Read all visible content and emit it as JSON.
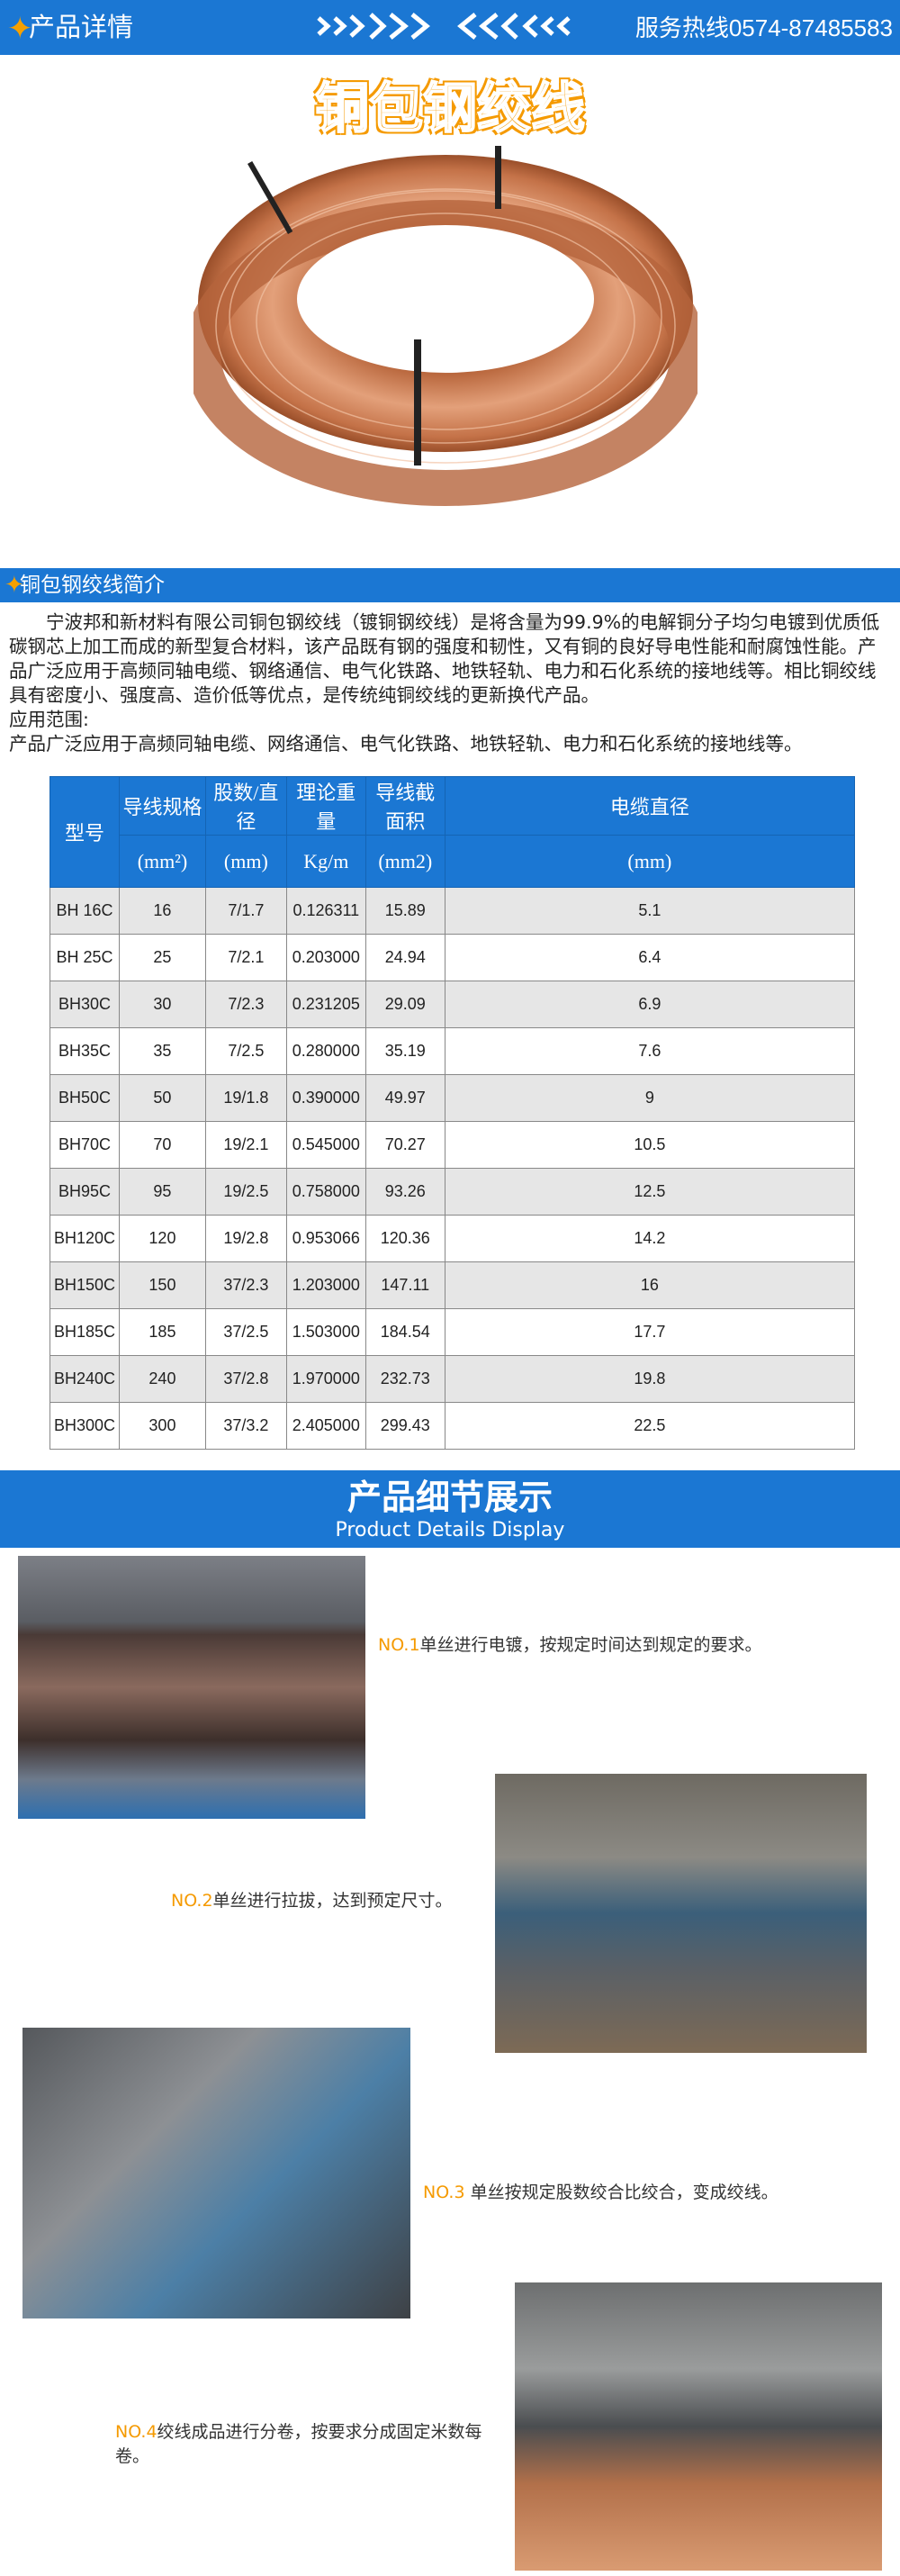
{
  "header": {
    "title": "产品详情",
    "hotline": "服务热线0574-87485583",
    "star_icon": "four-point-star",
    "accent": "#1b77d3",
    "highlight": "#f59a00"
  },
  "product_title": "铜包钢绞线",
  "intro_section": {
    "title": "铜包钢绞线简介",
    "paragraph": "宁波邦和新材料有限公司铜包钢绞线（镀铜钢绞线）是将含量为99.9%的电解铜分子均匀电镀到优质低碳钢芯上加工而成的新型复合材料，该产品既有钢的强度和韧性，又有铜的良好导电性能和耐腐蚀性能。产品广泛应用于高频同轴电缆、钢络通信、电气化铁路、地铁轻轨、电力和石化系统的接地线等。相比铜绞线具有密度小、强度高、造价低等优点，是传统纯铜绞线的更新换代产品。",
    "scope_label": "应用范围:",
    "scope_text": "产品广泛应用于高频同轴电缆、网络通信、电气化铁路、地铁轻轨、电力和石化系统的接地线等。"
  },
  "table": {
    "headers": [
      "型号",
      "导线规格",
      "股数/直径",
      "理论重量",
      "导线截面积",
      "电缆直径"
    ],
    "units": [
      "(mm²)",
      "(mm)",
      "Kg/m",
      "(mm2)",
      "(mm)"
    ],
    "rows": [
      [
        "BH 16C",
        "16",
        "7/1.7",
        "0.126311",
        "15.89",
        "5.1"
      ],
      [
        "BH 25C",
        "25",
        "7/2.1",
        "0.203000",
        "24.94",
        "6.4"
      ],
      [
        "BH30C",
        "30",
        "7/2.3",
        "0.231205",
        "29.09",
        "6.9"
      ],
      [
        "BH35C",
        "35",
        "7/2.5",
        "0.280000",
        "35.19",
        "7.6"
      ],
      [
        "BH50C",
        "50",
        "19/1.8",
        "0.390000",
        "49.97",
        "9"
      ],
      [
        "BH70C",
        "70",
        "19/2.1",
        "0.545000",
        "70.27",
        "10.5"
      ],
      [
        "BH95C",
        "95",
        "19/2.5",
        "0.758000",
        "93.26",
        "12.5"
      ],
      [
        "BH120C",
        "120",
        "19/2.8",
        "0.953066",
        "120.36",
        "14.2"
      ],
      [
        "BH150C",
        "150",
        "37/2.3",
        "1.203000",
        "147.11",
        "16"
      ],
      [
        "BH185C",
        "185",
        "37/2.5",
        "1.503000",
        "184.54",
        "17.7"
      ],
      [
        "BH240C",
        "240",
        "37/2.8",
        "1.970000",
        "232.73",
        "19.8"
      ],
      [
        "BH300C",
        "300",
        "37/3.2",
        "2.405000",
        "299.43",
        "22.5"
      ]
    ]
  },
  "details": {
    "title": "产品细节展示",
    "subtitle": "Product Details Display",
    "steps": [
      {
        "no": "NO.1",
        "text": "单丝进行电镀，按规定时间达到规定的要求。"
      },
      {
        "no": "NO.2",
        "text": "单丝进行拉拔，达到预定尺寸。"
      },
      {
        "no": "NO.3",
        "text": " 单丝按规定股数绞合比绞合，变成绞线。"
      },
      {
        "no": "NO.4",
        "text": "绞线成品进行分卷，按要求分成固定米数每卷。"
      }
    ]
  }
}
